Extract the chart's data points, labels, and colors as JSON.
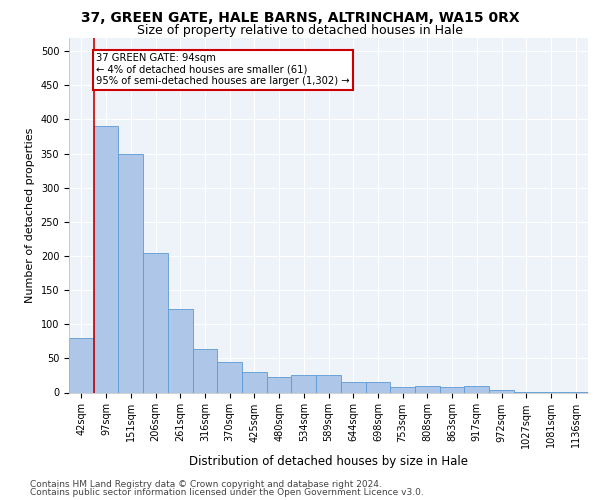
{
  "title1": "37, GREEN GATE, HALE BARNS, ALTRINCHAM, WA15 0RX",
  "title2": "Size of property relative to detached houses in Hale",
  "xlabel": "Distribution of detached houses by size in Hale",
  "ylabel": "Number of detached properties",
  "categories": [
    "42sqm",
    "97sqm",
    "151sqm",
    "206sqm",
    "261sqm",
    "316sqm",
    "370sqm",
    "425sqm",
    "480sqm",
    "534sqm",
    "589sqm",
    "644sqm",
    "698sqm",
    "753sqm",
    "808sqm",
    "863sqm",
    "917sqm",
    "972sqm",
    "1027sqm",
    "1081sqm",
    "1136sqm"
  ],
  "values": [
    80,
    390,
    350,
    205,
    122,
    63,
    45,
    30,
    22,
    25,
    25,
    16,
    15,
    8,
    9,
    8,
    10,
    3,
    1,
    1,
    1
  ],
  "bar_color": "#aec6e8",
  "bar_edge_color": "#5b9bd5",
  "annotation_box_text": "37 GREEN GATE: 94sqm\n← 4% of detached houses are smaller (61)\n95% of semi-detached houses are larger (1,302) →",
  "annotation_box_color": "#ffffff",
  "annotation_box_edge_color": "#cc0000",
  "vline_color": "#cc0000",
  "ylim": [
    0,
    520
  ],
  "yticks": [
    0,
    50,
    100,
    150,
    200,
    250,
    300,
    350,
    400,
    450,
    500
  ],
  "footer1": "Contains HM Land Registry data © Crown copyright and database right 2024.",
  "footer2": "Contains public sector information licensed under the Open Government Licence v3.0.",
  "background_color": "#eef2f9",
  "grid_color": "#ffffff",
  "title1_fontsize": 10,
  "title2_fontsize": 9,
  "xlabel_fontsize": 8.5,
  "ylabel_fontsize": 8,
  "tick_fontsize": 7,
  "footer_fontsize": 6.5
}
